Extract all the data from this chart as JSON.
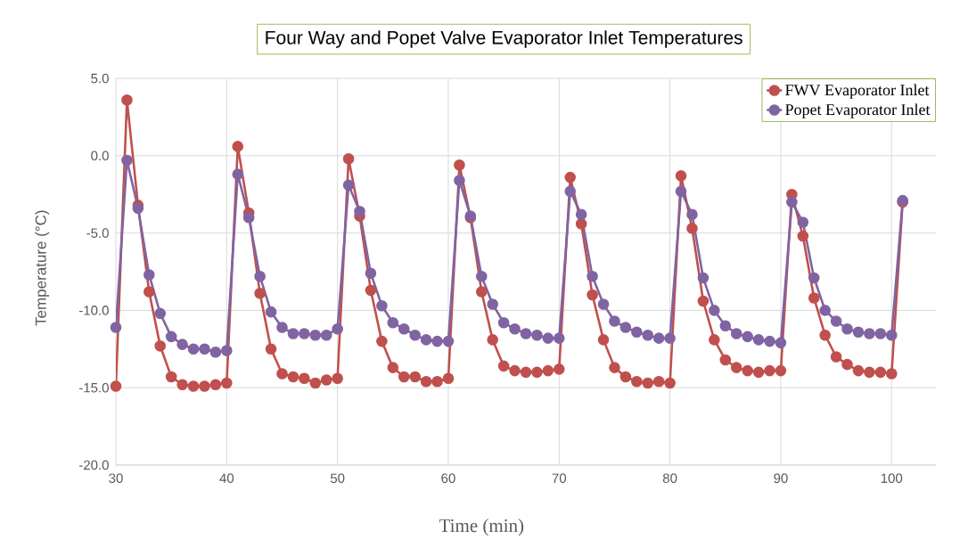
{
  "chart_data": {
    "type": "line",
    "title": "Four Way and Popet Valve Evaporator Inlet Temperatures",
    "xlabel": "Time (min)",
    "ylabel": "Temperature  (°C)",
    "x": [
      30,
      31,
      32,
      33,
      34,
      35,
      36,
      37,
      38,
      39,
      40,
      41,
      42,
      43,
      44,
      45,
      46,
      47,
      48,
      49,
      50,
      51,
      52,
      53,
      54,
      55,
      56,
      57,
      58,
      59,
      60,
      61,
      62,
      63,
      64,
      65,
      66,
      67,
      68,
      69,
      70,
      71,
      72,
      73,
      74,
      75,
      76,
      77,
      78,
      79,
      80,
      81,
      82,
      83,
      84,
      85,
      86,
      87,
      88,
      89,
      90,
      91,
      92,
      93,
      94,
      95,
      96,
      97,
      98,
      99,
      100,
      101
    ],
    "series": [
      {
        "name": "FWV Evaporator Inlet",
        "color": "#c0504d",
        "values": [
          -14.9,
          3.6,
          -3.2,
          -8.8,
          -12.3,
          -14.3,
          -14.8,
          -14.9,
          -14.9,
          -14.8,
          -14.7,
          0.6,
          -3.7,
          -8.9,
          -12.5,
          -14.1,
          -14.3,
          -14.4,
          -14.7,
          -14.5,
          -14.4,
          -0.2,
          -3.9,
          -8.7,
          -12.0,
          -13.7,
          -14.3,
          -14.3,
          -14.6,
          -14.6,
          -14.4,
          -0.6,
          -4.0,
          -8.8,
          -11.9,
          -13.6,
          -13.9,
          -14.0,
          -14.0,
          -13.9,
          -13.8,
          -1.4,
          -4.4,
          -9.0,
          -11.9,
          -13.7,
          -14.3,
          -14.6,
          -14.7,
          -14.6,
          -14.7,
          -1.3,
          -4.7,
          -9.4,
          -11.9,
          -13.2,
          -13.7,
          -13.9,
          -14.0,
          -13.9,
          -13.9,
          -2.5,
          -5.2,
          -9.2,
          -11.6,
          -13.0,
          -13.5,
          -13.9,
          -14.0,
          -14.0,
          -14.1,
          -3.0
        ]
      },
      {
        "name": "Popet Evaporator Inlet",
        "color": "#8064a2",
        "values": [
          -11.1,
          -0.3,
          -3.4,
          -7.7,
          -10.2,
          -11.7,
          -12.2,
          -12.5,
          -12.5,
          -12.7,
          -12.6,
          -1.2,
          -4.0,
          -7.8,
          -10.1,
          -11.1,
          -11.5,
          -11.5,
          -11.6,
          -11.6,
          -11.2,
          -1.9,
          -3.6,
          -7.6,
          -9.7,
          -10.8,
          -11.2,
          -11.6,
          -11.9,
          -12.0,
          -12.0,
          -1.6,
          -3.9,
          -7.8,
          -9.6,
          -10.8,
          -11.2,
          -11.5,
          -11.6,
          -11.8,
          -11.8,
          -2.3,
          -3.8,
          -7.8,
          -9.6,
          -10.7,
          -11.1,
          -11.4,
          -11.6,
          -11.8,
          -11.8,
          -2.3,
          -3.8,
          -7.9,
          -10.0,
          -11.0,
          -11.5,
          -11.7,
          -11.9,
          -12.0,
          -12.1,
          -3.0,
          -4.3,
          -7.9,
          -10.0,
          -10.7,
          -11.2,
          -11.4,
          -11.5,
          -11.5,
          -11.6,
          -2.9
        ]
      }
    ],
    "xlim": [
      30,
      104
    ],
    "ylim": [
      -20,
      5
    ],
    "xticks": [
      30,
      40,
      50,
      60,
      70,
      80,
      90,
      100
    ],
    "yticks": [
      {
        "value": 5,
        "label": "5.0"
      },
      {
        "value": 0,
        "label": "0.0"
      },
      {
        "value": -5,
        "label": "-5.0"
      },
      {
        "value": -10,
        "label": "-10.0"
      },
      {
        "value": -15,
        "label": "-15.0"
      },
      {
        "value": -20,
        "label": "-20.0"
      }
    ],
    "grid": true,
    "legend": "top right",
    "marker": "circle",
    "line_style": "solid"
  }
}
